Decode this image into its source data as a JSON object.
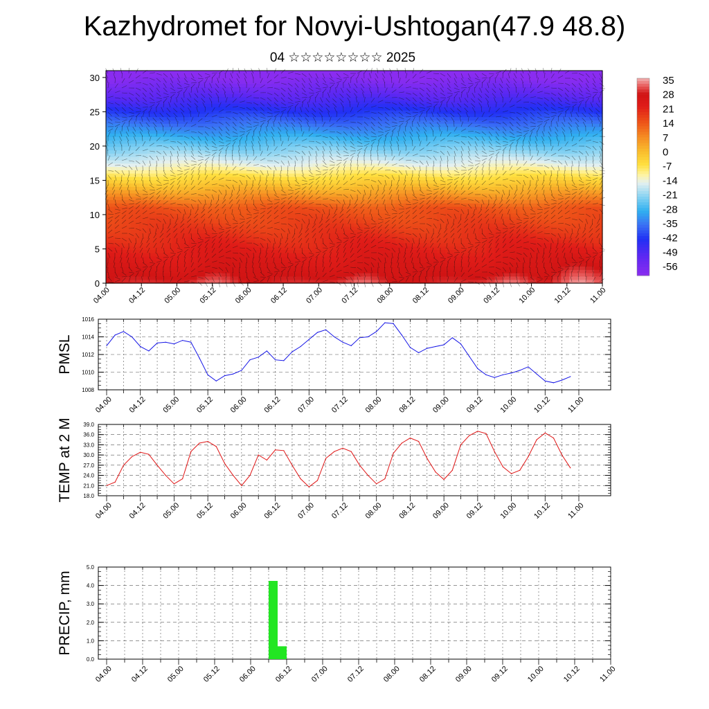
{
  "title": "Kazhydromet for Novyi-Ushtogan(47.9 48.8)",
  "subtitle": "04 ☆☆☆☆☆☆☆☆ 2025",
  "chart_data": [
    {
      "type": "heatmap",
      "name": "upper-air-cross-section",
      "x_tick_labels": [
        "04.00",
        "04.12",
        "05.00",
        "05.12",
        "06.00",
        "06.12",
        "07.00",
        "07.12",
        "08.00",
        "08.12",
        "09.00",
        "09.12",
        "10.00",
        "10.12",
        "11.00"
      ],
      "y_ticks": [
        0,
        5,
        10,
        15,
        20,
        25,
        30
      ],
      "ylim": [
        0,
        31
      ],
      "colorbar_labels": [
        "35",
        "28",
        "21",
        "14",
        "7",
        "0",
        "-7",
        "-14",
        "-21",
        "-28",
        "-35",
        "-42",
        "-49",
        "-56"
      ],
      "colorbar_range": [
        -60,
        38
      ],
      "colors": {
        "hot": "#e0181c",
        "warm": "#f7a22a",
        "neutral": "#fff08a",
        "cold": "#33b8f0",
        "cold_deep": "#2040f0",
        "coldest": "#7a2cf0"
      }
    },
    {
      "type": "line",
      "ylabel": "PMSL",
      "x_tick_labels": [
        "04.00",
        "04.12",
        "05.00",
        "05.12",
        "06.00",
        "06.12",
        "07.00",
        "07.12",
        "08.00",
        "08.12",
        "09.00",
        "09.12",
        "10.00",
        "10.12",
        "11.00"
      ],
      "y_tick_labels": [
        "1016",
        "1014",
        "1012",
        "1010",
        "1008"
      ],
      "ylim": [
        1008,
        1016
      ],
      "color": "#1414e6",
      "x": [
        0,
        3,
        6,
        9,
        12,
        15,
        18,
        21,
        24,
        27,
        30,
        33,
        36,
        39,
        42,
        45,
        48,
        51,
        54,
        57,
        60,
        63,
        66,
        69,
        72,
        75,
        78,
        81,
        84,
        87,
        90,
        93,
        96,
        99,
        102,
        105,
        108,
        111,
        114,
        117,
        120,
        123,
        126,
        129,
        132,
        135,
        138,
        141,
        144,
        147,
        150,
        153,
        156,
        159,
        162,
        165
      ],
      "values": [
        1013.0,
        1014.2,
        1014.6,
        1014.0,
        1012.9,
        1012.4,
        1013.3,
        1013.4,
        1013.2,
        1013.6,
        1013.4,
        1011.6,
        1009.7,
        1009.0,
        1009.6,
        1009.8,
        1010.2,
        1011.4,
        1011.7,
        1012.4,
        1011.4,
        1011.3,
        1012.3,
        1012.9,
        1013.7,
        1014.5,
        1014.8,
        1014.0,
        1013.4,
        1013.0,
        1013.9,
        1014.0,
        1014.6,
        1015.6,
        1015.5,
        1014.2,
        1012.8,
        1012.2,
        1012.7,
        1012.9,
        1013.1,
        1013.9,
        1013.2,
        1011.8,
        1010.4,
        1009.7,
        1009.4,
        1009.7,
        1009.9,
        1010.2,
        1010.6,
        1009.8,
        1009.0,
        1008.8,
        1009.1,
        1009.5
      ]
    },
    {
      "type": "line",
      "ylabel": "TEMP at 2 M",
      "x_tick_labels": [
        "04.00",
        "04.12",
        "05.00",
        "05.12",
        "06.00",
        "06.12",
        "07.00",
        "07.12",
        "08.00",
        "08.12",
        "09.00",
        "09.12",
        "10.00",
        "10.12",
        "11.00"
      ],
      "y_tick_labels": [
        "39.0",
        "36.0",
        "33.0",
        "30.0",
        "27.0",
        "24.0",
        "21.0",
        "18.0"
      ],
      "ylim": [
        18,
        39
      ],
      "color": "#e01414",
      "x": [
        0,
        3,
        6,
        9,
        12,
        15,
        18,
        21,
        24,
        27,
        30,
        33,
        36,
        39,
        42,
        45,
        48,
        51,
        54,
        57,
        60,
        63,
        66,
        69,
        72,
        75,
        78,
        81,
        84,
        87,
        90,
        93,
        96,
        99,
        102,
        105,
        108,
        111,
        114,
        117,
        120,
        123,
        126,
        129,
        132,
        135,
        138,
        141,
        144,
        147,
        150,
        153,
        156,
        159,
        162,
        165
      ],
      "values": [
        21.0,
        22.0,
        27.0,
        29.5,
        30.8,
        30.2,
        27.0,
        24.0,
        21.5,
        23.0,
        31.0,
        33.5,
        34.0,
        32.5,
        27.5,
        24.0,
        21.0,
        24.0,
        30.0,
        28.5,
        31.5,
        31.3,
        27.0,
        23.0,
        20.6,
        22.5,
        29.0,
        31.0,
        32.0,
        31.0,
        27.0,
        24.0,
        21.5,
        23.0,
        30.5,
        33.5,
        35.0,
        34.0,
        29.0,
        25.0,
        22.8,
        25.5,
        33.0,
        35.7,
        37.0,
        36.3,
        31.0,
        26.5,
        24.5,
        25.5,
        29.5,
        34.5,
        36.5,
        35.0,
        30.0,
        26.2
      ]
    },
    {
      "type": "bar",
      "ylabel": "PRECIP, mm",
      "x_tick_labels": [
        "04.00",
        "04.12",
        "05.00",
        "05.12",
        "06.00",
        "06.12",
        "07.00",
        "07.12",
        "08.00",
        "08.12",
        "09.00",
        "09.12",
        "10.00",
        "10.12",
        "11.00"
      ],
      "y_tick_labels": [
        "5.0",
        "4.0",
        "3.0",
        "2.0",
        "1.0",
        "0.0"
      ],
      "ylim": [
        0,
        5
      ],
      "color": "#22e622",
      "bars": [
        {
          "x_start": 54,
          "x_end": 57,
          "value": 4.25
        },
        {
          "x_start": 57,
          "x_end": 60,
          "value": 0.7
        }
      ]
    }
  ]
}
